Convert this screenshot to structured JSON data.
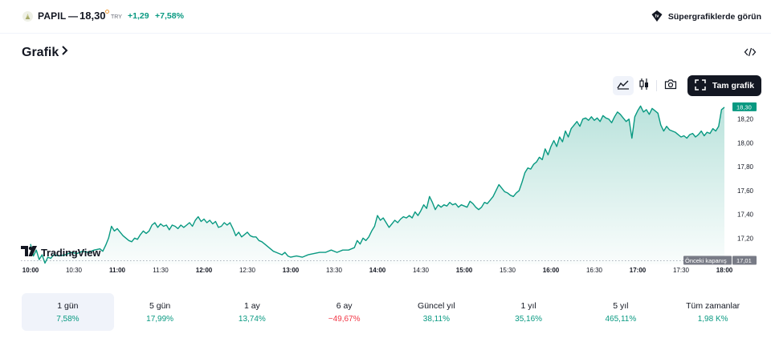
{
  "header": {
    "symbol": "PAPIL",
    "separator": "—",
    "price": "18,30",
    "currency": "TRY",
    "change": "+1,29",
    "change_percent": "+7,58%",
    "supercharts_label": "Süpergrafiklerde görün",
    "supercharts_icon": "supercharts-badge-icon",
    "accent_color": "#089981",
    "negative_color": "#f23645"
  },
  "section": {
    "title": "Grafik",
    "title_icon": "chevron-right-icon",
    "embed_icon": "code-icon"
  },
  "toolbar": {
    "area_icon": "area-chart-icon",
    "candles_icon": "candlestick-icon",
    "snapshot_icon": "camera-icon",
    "fullscreen_icon": "fullscreen-icon",
    "fullscreen_label": "Tam grafik"
  },
  "chart_data": {
    "type": "area",
    "ylim": [
      16.98,
      18.38
    ],
    "y_ticks": [
      "17,20",
      "17,40",
      "17,60",
      "17,80",
      "18,00",
      "18,20"
    ],
    "y_tick_values": [
      17.2,
      17.4,
      17.6,
      17.8,
      18.0,
      18.2
    ],
    "x_ticks": [
      "10:00",
      "10:30",
      "11:00",
      "11:30",
      "12:00",
      "12:30",
      "13:00",
      "13:30",
      "14:00",
      "14:30",
      "15:00",
      "15:30",
      "16:00",
      "16:30",
      "17:00",
      "17:30",
      "18:00"
    ],
    "x_ticks_bold": [
      "10:00",
      "11:00",
      "12:00",
      "13:00",
      "14:00",
      "15:00",
      "16:00",
      "17:00",
      "18:00"
    ],
    "x_range_minutes": [
      0,
      480
    ],
    "prev_close": 17.01,
    "prev_close_label": "Önceki kapanış",
    "prev_close_value_label": "17,01",
    "last_value": 18.3,
    "last_value_label": "18,30",
    "line_color": "#089981",
    "watermark": "TradingView",
    "series": [
      {
        "values": [
          [
            0,
            17.15
          ],
          [
            2,
            17.05
          ],
          [
            4,
            17.1
          ],
          [
            6,
            17.02
          ],
          [
            8,
            17.06
          ],
          [
            10,
            16.99
          ],
          [
            12,
            17.04
          ],
          [
            14,
            17.03
          ],
          [
            16,
            17.06
          ],
          [
            20,
            17.05
          ],
          [
            24,
            17.06
          ],
          [
            28,
            17.08
          ],
          [
            32,
            17.07
          ],
          [
            36,
            17.09
          ],
          [
            40,
            17.08
          ],
          [
            44,
            17.1
          ],
          [
            48,
            17.11
          ],
          [
            50,
            17.09
          ],
          [
            52,
            17.14
          ],
          [
            54,
            17.2
          ],
          [
            56,
            17.3
          ],
          [
            58,
            17.26
          ],
          [
            60,
            17.28
          ],
          [
            62,
            17.25
          ],
          [
            64,
            17.22
          ],
          [
            66,
            17.2
          ],
          [
            68,
            17.18
          ],
          [
            70,
            17.17
          ],
          [
            72,
            17.2
          ],
          [
            74,
            17.19
          ],
          [
            76,
            17.23
          ],
          [
            78,
            17.26
          ],
          [
            80,
            17.24
          ],
          [
            82,
            17.26
          ],
          [
            84,
            17.31
          ],
          [
            86,
            17.33
          ],
          [
            88,
            17.29
          ],
          [
            90,
            17.32
          ],
          [
            92,
            17.3
          ],
          [
            94,
            17.31
          ],
          [
            96,
            17.27
          ],
          [
            98,
            17.31
          ],
          [
            100,
            17.3
          ],
          [
            102,
            17.28
          ],
          [
            104,
            17.31
          ],
          [
            106,
            17.29
          ],
          [
            108,
            17.31
          ],
          [
            110,
            17.33
          ],
          [
            112,
            17.3
          ],
          [
            114,
            17.35
          ],
          [
            116,
            17.38
          ],
          [
            118,
            17.34
          ],
          [
            120,
            17.36
          ],
          [
            122,
            17.33
          ],
          [
            124,
            17.35
          ],
          [
            126,
            17.32
          ],
          [
            128,
            17.34
          ],
          [
            130,
            17.29
          ],
          [
            132,
            17.3
          ],
          [
            134,
            17.33
          ],
          [
            136,
            17.31
          ],
          [
            138,
            17.33
          ],
          [
            140,
            17.28
          ],
          [
            142,
            17.22
          ],
          [
            144,
            17.25
          ],
          [
            146,
            17.21
          ],
          [
            148,
            17.23
          ],
          [
            150,
            17.25
          ],
          [
            152,
            17.22
          ],
          [
            154,
            17.21
          ],
          [
            156,
            17.21
          ],
          [
            158,
            17.18
          ],
          [
            160,
            17.17
          ],
          [
            162,
            17.15
          ],
          [
            164,
            17.13
          ],
          [
            166,
            17.11
          ],
          [
            168,
            17.09
          ],
          [
            170,
            17.08
          ],
          [
            172,
            17.07
          ],
          [
            174,
            17.06
          ],
          [
            176,
            17.08
          ],
          [
            178,
            17.05
          ],
          [
            180,
            17.04
          ],
          [
            184,
            17.05
          ],
          [
            188,
            17.04
          ],
          [
            192,
            17.06
          ],
          [
            196,
            17.07
          ],
          [
            200,
            17.08
          ],
          [
            204,
            17.08
          ],
          [
            208,
            17.1
          ],
          [
            212,
            17.08
          ],
          [
            216,
            17.1
          ],
          [
            220,
            17.1
          ],
          [
            224,
            17.12
          ],
          [
            226,
            17.18
          ],
          [
            228,
            17.15
          ],
          [
            230,
            17.2
          ],
          [
            232,
            17.18
          ],
          [
            234,
            17.21
          ],
          [
            236,
            17.26
          ],
          [
            238,
            17.3
          ],
          [
            240,
            17.39
          ],
          [
            242,
            17.35
          ],
          [
            244,
            17.37
          ],
          [
            246,
            17.33
          ],
          [
            248,
            17.29
          ],
          [
            250,
            17.32
          ],
          [
            252,
            17.35
          ],
          [
            254,
            17.33
          ],
          [
            256,
            17.36
          ],
          [
            258,
            17.38
          ],
          [
            260,
            17.37
          ],
          [
            262,
            17.39
          ],
          [
            264,
            17.37
          ],
          [
            266,
            17.42
          ],
          [
            268,
            17.39
          ],
          [
            270,
            17.43
          ],
          [
            272,
            17.48
          ],
          [
            274,
            17.45
          ],
          [
            276,
            17.55
          ],
          [
            278,
            17.5
          ],
          [
            280,
            17.44
          ],
          [
            282,
            17.48
          ],
          [
            284,
            17.46
          ],
          [
            286,
            17.48
          ],
          [
            288,
            17.47
          ],
          [
            290,
            17.5
          ],
          [
            292,
            17.48
          ],
          [
            294,
            17.49
          ],
          [
            296,
            17.46
          ],
          [
            298,
            17.48
          ],
          [
            300,
            17.47
          ],
          [
            302,
            17.46
          ],
          [
            304,
            17.51
          ],
          [
            306,
            17.49
          ],
          [
            308,
            17.46
          ],
          [
            310,
            17.44
          ],
          [
            312,
            17.46
          ],
          [
            314,
            17.5
          ],
          [
            316,
            17.49
          ],
          [
            318,
            17.52
          ],
          [
            320,
            17.55
          ],
          [
            322,
            17.6
          ],
          [
            324,
            17.65
          ],
          [
            326,
            17.62
          ],
          [
            328,
            17.59
          ],
          [
            330,
            17.58
          ],
          [
            332,
            17.56
          ],
          [
            334,
            17.55
          ],
          [
            336,
            17.58
          ],
          [
            338,
            17.6
          ],
          [
            340,
            17.67
          ],
          [
            342,
            17.75
          ],
          [
            344,
            17.79
          ],
          [
            346,
            17.78
          ],
          [
            348,
            17.82
          ],
          [
            350,
            17.84
          ],
          [
            352,
            17.88
          ],
          [
            354,
            17.86
          ],
          [
            356,
            17.95
          ],
          [
            358,
            17.9
          ],
          [
            360,
            17.97
          ],
          [
            362,
            18.02
          ],
          [
            364,
            17.97
          ],
          [
            366,
            18.05
          ],
          [
            368,
            18.01
          ],
          [
            370,
            18.1
          ],
          [
            372,
            18.05
          ],
          [
            374,
            18.12
          ],
          [
            376,
            18.15
          ],
          [
            378,
            18.18
          ],
          [
            380,
            18.14
          ],
          [
            382,
            18.2
          ],
          [
            384,
            18.21
          ],
          [
            386,
            18.19
          ],
          [
            388,
            18.22
          ],
          [
            390,
            18.19
          ],
          [
            392,
            18.21
          ],
          [
            394,
            18.18
          ],
          [
            396,
            18.23
          ],
          [
            398,
            18.21
          ],
          [
            400,
            18.2
          ],
          [
            402,
            18.17
          ],
          [
            404,
            18.22
          ],
          [
            406,
            18.26
          ],
          [
            408,
            18.24
          ],
          [
            410,
            18.21
          ],
          [
            412,
            18.18
          ],
          [
            414,
            18.2
          ],
          [
            416,
            18.04
          ],
          [
            418,
            18.22
          ],
          [
            420,
            18.27
          ],
          [
            422,
            18.31
          ],
          [
            424,
            18.26
          ],
          [
            426,
            18.28
          ],
          [
            428,
            18.24
          ],
          [
            430,
            18.29
          ],
          [
            432,
            18.27
          ],
          [
            434,
            18.25
          ],
          [
            436,
            18.15
          ],
          [
            438,
            18.1
          ],
          [
            440,
            18.14
          ],
          [
            442,
            18.11
          ],
          [
            444,
            18.1
          ],
          [
            446,
            18.09
          ],
          [
            448,
            18.07
          ],
          [
            450,
            18.05
          ],
          [
            452,
            18.06
          ],
          [
            454,
            18.04
          ],
          [
            456,
            18.07
          ],
          [
            458,
            18.08
          ],
          [
            460,
            18.05
          ],
          [
            462,
            18.07
          ],
          [
            464,
            18.1
          ],
          [
            466,
            18.06
          ],
          [
            468,
            18.09
          ],
          [
            470,
            18.08
          ],
          [
            472,
            18.12
          ],
          [
            474,
            18.1
          ],
          [
            476,
            18.14
          ],
          [
            478,
            18.28
          ],
          [
            480,
            18.3
          ]
        ]
      }
    ]
  },
  "periods": [
    {
      "label": "1 gün",
      "value": "7,58%",
      "sign": "pos",
      "active": true
    },
    {
      "label": "5 gün",
      "value": "17,99%",
      "sign": "pos",
      "active": false
    },
    {
      "label": "1 ay",
      "value": "13,74%",
      "sign": "pos",
      "active": false
    },
    {
      "label": "6 ay",
      "value": "−49,67%",
      "sign": "neg",
      "active": false
    },
    {
      "label": "Güncel yıl",
      "value": "38,11%",
      "sign": "pos",
      "active": false
    },
    {
      "label": "1 yıl",
      "value": "35,16%",
      "sign": "pos",
      "active": false
    },
    {
      "label": "5 yıl",
      "value": "465,11%",
      "sign": "pos",
      "active": false
    },
    {
      "label": "Tüm zamanlar",
      "value": "1,98 K%",
      "sign": "pos",
      "active": false
    }
  ]
}
